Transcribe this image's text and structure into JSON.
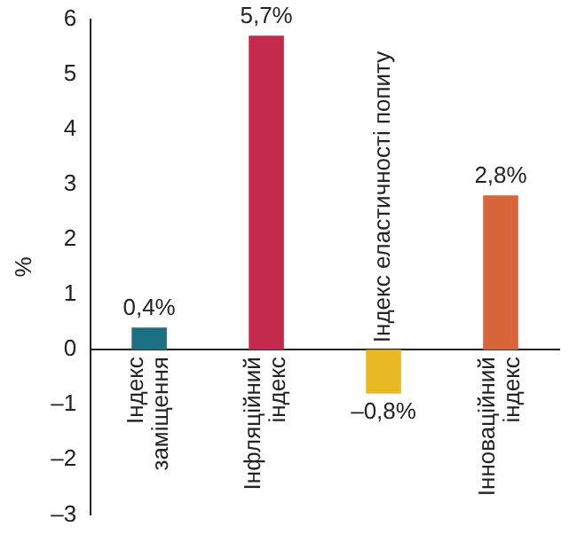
{
  "chart_data": {
    "type": "bar",
    "ylabel": "%",
    "categories": [
      "Індекс заміщення",
      "Інфляційний індекс",
      "Індекс еластичності попиту",
      "Інноваційний індекс"
    ],
    "values": [
      0.4,
      5.7,
      -0.8,
      2.8
    ],
    "colors": [
      "#1d6f84",
      "#c42a4c",
      "#e8b923",
      "#d8653a"
    ],
    "value_labels": [
      "0,4%",
      "5,7%",
      "–0,8%",
      "2,8%"
    ],
    "ylim": [
      -3,
      6
    ],
    "yticks": [
      {
        "value": -3,
        "label": "–3"
      },
      {
        "value": -2,
        "label": "–2"
      },
      {
        "value": -1,
        "label": "–1"
      },
      0,
      1,
      2,
      3,
      4,
      5,
      6
    ],
    "grid": false,
    "legend": false
  }
}
